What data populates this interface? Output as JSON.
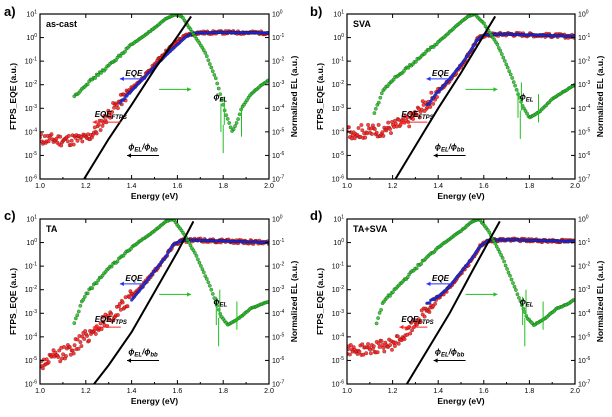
{
  "chart_data": [
    {
      "type": "scatter",
      "panel_letter": "a)",
      "title": "as-cast",
      "xlabel": "Energy (eV)",
      "ylabel": "FTPS_EQE (a.u.)",
      "y2label": "Normalized EL (a.u.)",
      "xlim": [
        1.0,
        2.0
      ],
      "ylog_range": [
        -6,
        1
      ],
      "y2log_range": [
        -7,
        0
      ],
      "xticks": [
        "1.0",
        "1.2",
        "1.4",
        "1.6",
        "1.8",
        "2.0"
      ],
      "yticks": [
        "10^-6",
        "10^-5",
        "10^-4",
        "10^-3",
        "10^-2",
        "10^-1",
        "10^0",
        "10^1"
      ],
      "y2ticks": [
        "10^-7",
        "10^-6",
        "10^-5",
        "10^-4",
        "10^-3",
        "10^-2",
        "10^-1",
        "10^0"
      ],
      "annotations": {
        "eqe": "EQE",
        "eqe_ftps": "EQE",
        "eqe_ftps_sub": "FTPS",
        "phi_el": "ϕ",
        "phi_el_sub": "EL",
        "ratio_a": "ϕ",
        "ratio_a_sub": "EL",
        "ratio_b": "/ϕ",
        "ratio_b_sub": "bb"
      },
      "series": [
        {
          "name": "FTPS_EQE",
          "axis": "left",
          "color": "#ff2020",
          "noise": 0.25,
          "points": [
            [
              1.0,
              -4.3
            ],
            [
              1.1,
              -4.35
            ],
            [
              1.2,
              -4.3
            ],
            [
              1.24,
              -4.0
            ],
            [
              1.28,
              -3.5
            ],
            [
              1.32,
              -3.0
            ],
            [
              1.36,
              -2.6
            ],
            [
              1.4,
              -2.2
            ],
            [
              1.44,
              -1.8
            ],
            [
              1.48,
              -1.4
            ],
            [
              1.52,
              -0.9
            ],
            [
              1.56,
              -0.5
            ],
            [
              1.6,
              -0.15
            ],
            [
              1.64,
              0.1
            ],
            [
              1.68,
              0.2
            ],
            [
              1.8,
              0.22
            ],
            [
              2.0,
              0.2
            ]
          ]
        },
        {
          "name": "EQE",
          "axis": "left",
          "color": "#2030ff",
          "noise": 0.05,
          "points": [
            [
              1.35,
              -2.75
            ],
            [
              1.4,
              -2.25
            ],
            [
              1.45,
              -1.75
            ],
            [
              1.5,
              -1.25
            ],
            [
              1.55,
              -0.75
            ],
            [
              1.6,
              -0.3
            ],
            [
              1.64,
              0.05
            ],
            [
              1.68,
              0.2
            ],
            [
              1.8,
              0.22
            ],
            [
              2.0,
              0.2
            ]
          ]
        },
        {
          "name": "EL",
          "axis": "right",
          "color": "#20c020",
          "noise": 0.05,
          "points": [
            [
              1.15,
              -3.5
            ],
            [
              1.2,
              -3.0
            ],
            [
              1.3,
              -2.2
            ],
            [
              1.4,
              -1.3
            ],
            [
              1.5,
              -0.6
            ],
            [
              1.55,
              -0.2
            ],
            [
              1.59,
              -0.02
            ],
            [
              1.62,
              -0.1
            ],
            [
              1.66,
              -0.7
            ],
            [
              1.72,
              -1.6
            ],
            [
              1.77,
              -2.8
            ],
            [
              1.81,
              -4.2
            ],
            [
              1.84,
              -5.0
            ],
            [
              1.86,
              -4.6
            ],
            [
              1.88,
              -4.0
            ],
            [
              1.92,
              -3.4
            ],
            [
              1.97,
              -3.0
            ],
            [
              2.0,
              -2.8
            ]
          ]
        },
        {
          "name": "phi_EL/phi_bb",
          "axis": "left",
          "color": "#000000",
          "noise": 0,
          "points": [
            [
              1.18,
              -6.2
            ],
            [
              1.3,
              -4.3
            ],
            [
              1.4,
              -2.85
            ],
            [
              1.5,
              -1.35
            ],
            [
              1.6,
              0.05
            ],
            [
              1.66,
              0.9
            ]
          ]
        }
      ]
    },
    {
      "type": "scatter",
      "panel_letter": "b)",
      "title": "SVA",
      "xlabel": "Energy (eV)",
      "ylabel": "FTPS_EQE (a.u.)",
      "y2label": "Normalized EL (a.u.)",
      "xlim": [
        1.0,
        2.0
      ],
      "ylog_range": [
        -6,
        1
      ],
      "y2log_range": [
        -7,
        0
      ],
      "xticks": [
        "1.0",
        "1.2",
        "1.4",
        "1.6",
        "1.8",
        "2.0"
      ],
      "yticks": [
        "10^-6",
        "10^-5",
        "10^-4",
        "10^-3",
        "10^-2",
        "10^-1",
        "10^0",
        "10^1"
      ],
      "y2ticks": [
        "10^-7",
        "10^-6",
        "10^-5",
        "10^-4",
        "10^-3",
        "10^-2",
        "10^-1",
        "10^0"
      ],
      "annotations": {
        "eqe": "EQE",
        "eqe_ftps": "EQE",
        "eqe_ftps_sub": "FTPS",
        "phi_el": "ϕ",
        "phi_el_sub": "EL",
        "ratio_a": "ϕ",
        "ratio_a_sub": "EL",
        "ratio_b": "/ϕ",
        "ratio_b_sub": "bb"
      },
      "series": [
        {
          "name": "FTPS_EQE",
          "axis": "left",
          "color": "#ff2020",
          "noise": 0.3,
          "points": [
            [
              1.0,
              -4.0
            ],
            [
              1.1,
              -4.0
            ],
            [
              1.2,
              -3.8
            ],
            [
              1.26,
              -3.6
            ],
            [
              1.3,
              -3.3
            ],
            [
              1.35,
              -2.8
            ],
            [
              1.4,
              -2.3
            ],
            [
              1.45,
              -1.8
            ],
            [
              1.5,
              -1.2
            ],
            [
              1.54,
              -0.6
            ],
            [
              1.57,
              -0.1
            ],
            [
              1.6,
              0.1
            ],
            [
              1.7,
              0.15
            ],
            [
              2.0,
              0.05
            ]
          ]
        },
        {
          "name": "EQE",
          "axis": "left",
          "color": "#2030ff",
          "noise": 0.05,
          "points": [
            [
              1.35,
              -2.9
            ],
            [
              1.4,
              -2.3
            ],
            [
              1.45,
              -1.75
            ],
            [
              1.5,
              -1.15
            ],
            [
              1.54,
              -0.6
            ],
            [
              1.57,
              -0.1
            ],
            [
              1.6,
              0.12
            ],
            [
              1.7,
              0.15
            ],
            [
              2.0,
              0.05
            ]
          ]
        },
        {
          "name": "EL",
          "axis": "right",
          "color": "#20c020",
          "noise": 0.05,
          "points": [
            [
              1.12,
              -4.2
            ],
            [
              1.16,
              -3.2
            ],
            [
              1.2,
              -2.8
            ],
            [
              1.3,
              -2.0
            ],
            [
              1.4,
              -1.2
            ],
            [
              1.48,
              -0.5
            ],
            [
              1.53,
              -0.1
            ],
            [
              1.56,
              0.0
            ],
            [
              1.6,
              -0.4
            ],
            [
              1.66,
              -1.3
            ],
            [
              1.72,
              -2.6
            ],
            [
              1.77,
              -3.9
            ],
            [
              1.8,
              -4.4
            ],
            [
              1.85,
              -4.1
            ],
            [
              1.9,
              -3.6
            ],
            [
              1.95,
              -3.3
            ],
            [
              2.0,
              -3.0
            ]
          ]
        },
        {
          "name": "phi_EL/phi_bb",
          "axis": "left",
          "color": "#000000",
          "noise": 0,
          "points": [
            [
              1.2,
              -6.2
            ],
            [
              1.3,
              -4.6
            ],
            [
              1.4,
              -3.0
            ],
            [
              1.5,
              -1.5
            ],
            [
              1.6,
              0.1
            ],
            [
              1.65,
              0.9
            ]
          ]
        }
      ]
    },
    {
      "type": "scatter",
      "panel_letter": "c)",
      "title": "TA",
      "xlabel": "Energy (eV)",
      "ylabel": "FTPS_EQE (a.u.)",
      "y2label": "Normalized EL (a.u.)",
      "xlim": [
        1.0,
        2.0
      ],
      "ylog_range": [
        -6,
        1
      ],
      "y2log_range": [
        -7,
        0
      ],
      "xticks": [
        "1.0",
        "1.2",
        "1.4",
        "1.6",
        "1.8",
        "2.0"
      ],
      "yticks": [
        "10^-6",
        "10^-5",
        "10^-4",
        "10^-3",
        "10^-2",
        "10^-1",
        "10^0",
        "10^1"
      ],
      "y2ticks": [
        "10^-7",
        "10^-6",
        "10^-5",
        "10^-4",
        "10^-3",
        "10^-2",
        "10^-1",
        "10^0"
      ],
      "annotations": {
        "eqe": "EQE",
        "eqe_ftps": "EQE",
        "eqe_ftps_sub": "FTPS",
        "phi_el": "ϕ",
        "phi_el_sub": "EL",
        "ratio_a": "ϕ",
        "ratio_a_sub": "EL",
        "ratio_b": "/ϕ",
        "ratio_b_sub": "bb"
      },
      "series": [
        {
          "name": "FTPS_EQE",
          "axis": "left",
          "color": "#ff2020",
          "noise": 0.3,
          "points": [
            [
              1.0,
              -5.2
            ],
            [
              1.05,
              -4.9
            ],
            [
              1.1,
              -4.7
            ],
            [
              1.15,
              -4.4
            ],
            [
              1.2,
              -4.0
            ],
            [
              1.25,
              -3.6
            ],
            [
              1.3,
              -3.2
            ],
            [
              1.35,
              -2.8
            ],
            [
              1.4,
              -2.3
            ],
            [
              1.45,
              -1.8
            ],
            [
              1.5,
              -1.2
            ],
            [
              1.55,
              -0.6
            ],
            [
              1.58,
              -0.1
            ],
            [
              1.62,
              0.1
            ],
            [
              1.7,
              0.1
            ],
            [
              2.0,
              0.0
            ]
          ]
        },
        {
          "name": "EQE",
          "axis": "left",
          "color": "#2030ff",
          "noise": 0.05,
          "points": [
            [
              1.4,
              -2.45
            ],
            [
              1.45,
              -1.85
            ],
            [
              1.5,
              -1.2
            ],
            [
              1.55,
              -0.6
            ],
            [
              1.58,
              -0.1
            ],
            [
              1.62,
              0.1
            ],
            [
              1.7,
              0.1
            ],
            [
              2.0,
              0.0
            ]
          ]
        },
        {
          "name": "EL",
          "axis": "right",
          "color": "#20c020",
          "noise": 0.05,
          "points": [
            [
              1.15,
              -4.4
            ],
            [
              1.18,
              -3.6
            ],
            [
              1.2,
              -3.2
            ],
            [
              1.3,
              -2.1
            ],
            [
              1.4,
              -1.2
            ],
            [
              1.5,
              -0.5
            ],
            [
              1.55,
              -0.1
            ],
            [
              1.58,
              0.0
            ],
            [
              1.62,
              -0.5
            ],
            [
              1.68,
              -1.5
            ],
            [
              1.74,
              -2.8
            ],
            [
              1.79,
              -4.1
            ],
            [
              1.82,
              -4.5
            ],
            [
              1.87,
              -4.2
            ],
            [
              1.92,
              -3.8
            ],
            [
              1.97,
              -3.6
            ],
            [
              2.0,
              -3.5
            ]
          ]
        },
        {
          "name": "phi_EL/phi_bb",
          "axis": "left",
          "color": "#000000",
          "noise": 0,
          "points": [
            [
              1.22,
              -6.2
            ],
            [
              1.3,
              -5.2
            ],
            [
              1.4,
              -3.8
            ],
            [
              1.5,
              -2.1
            ],
            [
              1.6,
              -0.4
            ],
            [
              1.67,
              0.9
            ]
          ]
        }
      ]
    },
    {
      "type": "scatter",
      "panel_letter": "d)",
      "title": "TA+SVA",
      "xlabel": "Energy (eV)",
      "ylabel": "FTPS_EQE (a.u.)",
      "y2label": "Normalized EL (a.u.)",
      "xlim": [
        1.0,
        2.0
      ],
      "ylog_range": [
        -6,
        1
      ],
      "y2log_range": [
        -7,
        0
      ],
      "xticks": [
        "1.0",
        "1.2",
        "1.4",
        "1.6",
        "1.8",
        "2.0"
      ],
      "yticks": [
        "10^-6",
        "10^-5",
        "10^-4",
        "10^-3",
        "10^-2",
        "10^-1",
        "10^0",
        "10^1"
      ],
      "y2ticks": [
        "10^-7",
        "10^-6",
        "10^-5",
        "10^-4",
        "10^-3",
        "10^-2",
        "10^-1",
        "10^0"
      ],
      "annotations": {
        "eqe": "EQE",
        "eqe_ftps": "EQE",
        "eqe_ftps_sub": "FTPS",
        "phi_el": "ϕ",
        "phi_el_sub": "EL",
        "ratio_a": "ϕ",
        "ratio_a_sub": "EL",
        "ratio_b": "/ϕ",
        "ratio_b_sub": "bb"
      },
      "series": [
        {
          "name": "FTPS_EQE",
          "axis": "left",
          "color": "#ff2020",
          "noise": 0.25,
          "points": [
            [
              1.0,
              -4.6
            ],
            [
              1.1,
              -4.5
            ],
            [
              1.2,
              -4.3
            ],
            [
              1.26,
              -3.9
            ],
            [
              1.3,
              -3.4
            ],
            [
              1.35,
              -2.9
            ],
            [
              1.4,
              -2.4
            ],
            [
              1.45,
              -1.9
            ],
            [
              1.5,
              -1.3
            ],
            [
              1.55,
              -0.7
            ],
            [
              1.58,
              -0.2
            ],
            [
              1.62,
              0.1
            ],
            [
              1.7,
              0.12
            ],
            [
              2.0,
              0.05
            ]
          ]
        },
        {
          "name": "EQE",
          "axis": "left",
          "color": "#2030ff",
          "noise": 0.05,
          "points": [
            [
              1.35,
              -2.6
            ],
            [
              1.4,
              -2.3
            ],
            [
              1.45,
              -1.85
            ],
            [
              1.5,
              -1.25
            ],
            [
              1.55,
              -0.65
            ],
            [
              1.58,
              -0.2
            ],
            [
              1.62,
              0.1
            ],
            [
              1.7,
              0.12
            ],
            [
              2.0,
              0.05
            ]
          ]
        },
        {
          "name": "EL",
          "axis": "right",
          "color": "#20c020",
          "noise": 0.05,
          "points": [
            [
              1.13,
              -4.4
            ],
            [
              1.16,
              -3.5
            ],
            [
              1.2,
              -3.1
            ],
            [
              1.3,
              -2.1
            ],
            [
              1.4,
              -1.2
            ],
            [
              1.5,
              -0.5
            ],
            [
              1.55,
              -0.1
            ],
            [
              1.58,
              0.0
            ],
            [
              1.62,
              -0.5
            ],
            [
              1.68,
              -1.6
            ],
            [
              1.74,
              -3.0
            ],
            [
              1.79,
              -4.2
            ],
            [
              1.82,
              -4.5
            ],
            [
              1.87,
              -4.2
            ],
            [
              1.92,
              -3.8
            ],
            [
              1.97,
              -3.6
            ],
            [
              2.0,
              -3.4
            ]
          ]
        },
        {
          "name": "phi_EL/phi_bb",
          "axis": "left",
          "color": "#000000",
          "noise": 0,
          "points": [
            [
              1.25,
              -6.2
            ],
            [
              1.35,
              -4.6
            ],
            [
              1.45,
              -3.0
            ],
            [
              1.55,
              -1.2
            ],
            [
              1.63,
              0.2
            ],
            [
              1.67,
              0.9
            ]
          ]
        }
      ]
    }
  ]
}
